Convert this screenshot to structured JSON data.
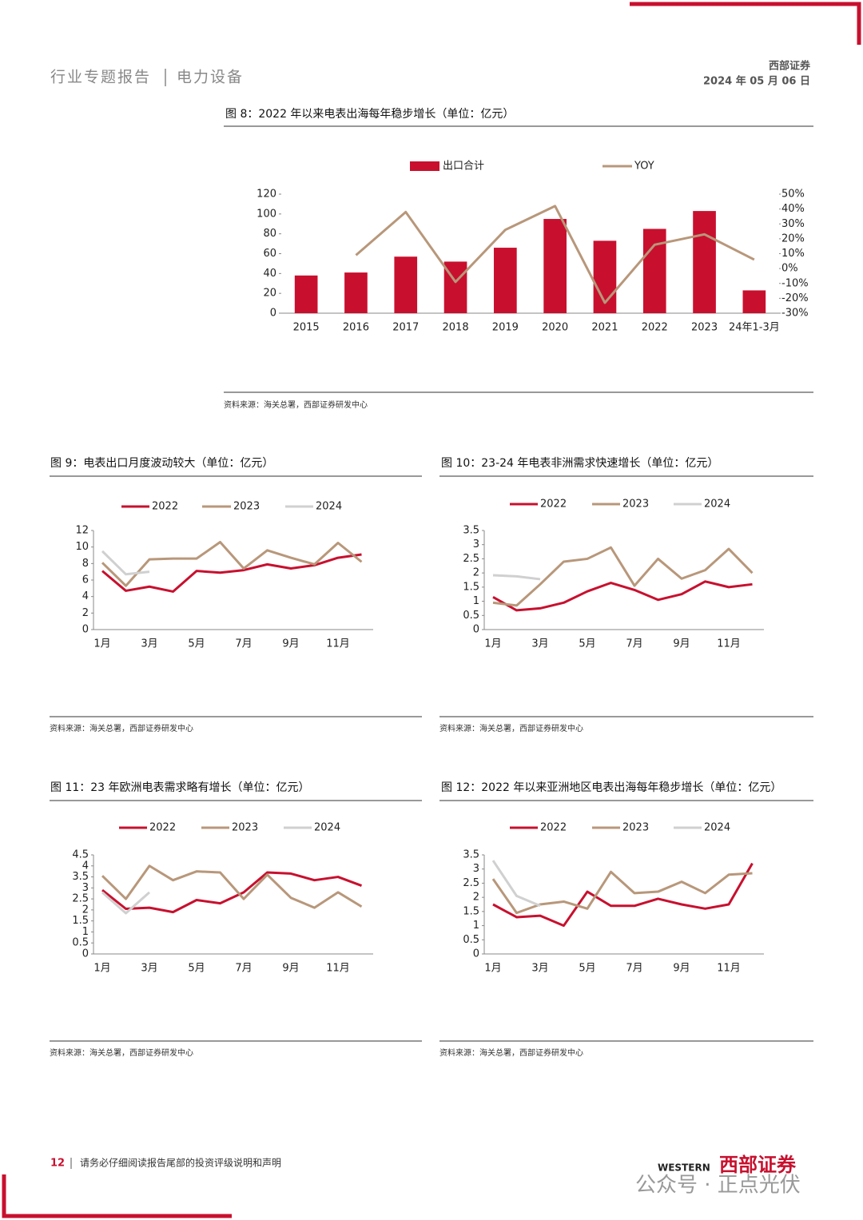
{
  "header": {
    "report_type": "行业专题报告",
    "sector": "电力设备",
    "company": "西部证券",
    "date": "2024 年 05 月 06 日"
  },
  "chart_data": [
    {
      "type": "bar",
      "title": "图 8：2022 年以来电表出海每年稳步增长（单位：亿元）",
      "source": "资料来源：海关总署，西部证券研发中心",
      "categories": [
        "2015",
        "2016",
        "2017",
        "2018",
        "2019",
        "2020",
        "2021",
        "2022",
        "2023",
        "24年1-3月"
      ],
      "series": [
        {
          "name": "出口合计",
          "type": "bar",
          "color": "#c8102e",
          "values": [
            38,
            41,
            57,
            52,
            66,
            95,
            73,
            85,
            103,
            23
          ]
        },
        {
          "name": "YOY",
          "type": "line",
          "axis": "y2",
          "color": "#b8977a",
          "values": [
            null,
            9,
            38,
            -9,
            26,
            42,
            -23,
            16,
            23,
            6
          ]
        }
      ],
      "ylim": [
        0,
        120
      ],
      "yticks": [
        0,
        20,
        40,
        60,
        80,
        100,
        120
      ],
      "y2lim": [
        -30,
        50
      ],
      "y2ticks": [
        {
          "value": -30,
          "label": "-30%"
        },
        {
          "value": -20,
          "label": "-20%"
        },
        {
          "value": -10,
          "label": "-10%"
        },
        {
          "value": 0,
          "label": "0%"
        },
        {
          "value": 10,
          "label": "10%"
        },
        {
          "value": 20,
          "label": "20%"
        },
        {
          "value": 30,
          "label": "30%"
        },
        {
          "value": 40,
          "label": "40%"
        },
        {
          "value": 50,
          "label": "50%"
        }
      ],
      "legend": "top",
      "grid": false
    },
    {
      "type": "line",
      "title": "图 9：电表出口月度波动较大（单位：亿元）",
      "source": "资料来源：海关总署，西部证券研发中心",
      "categories": [
        "1月",
        null,
        "3月",
        null,
        "5月",
        null,
        "7月",
        null,
        "9月",
        null,
        "11月",
        null
      ],
      "series": [
        {
          "name": "2022",
          "color": "#c8102e",
          "values": [
            7.1,
            4.7,
            5.2,
            4.6,
            7.1,
            6.9,
            7.2,
            7.9,
            7.4,
            7.8,
            8.7,
            9.1
          ]
        },
        {
          "name": "2023",
          "color": "#b8977a",
          "values": [
            8.1,
            5.3,
            8.5,
            8.6,
            8.6,
            10.6,
            7.4,
            9.6,
            8.7,
            7.9,
            10.5,
            8.2
          ]
        },
        {
          "name": "2024",
          "color": "#d0d0d0",
          "values": [
            9.5,
            6.7,
            7.0,
            null,
            null,
            null,
            null,
            null,
            null,
            null,
            null,
            null
          ]
        }
      ],
      "ylim": [
        0,
        12
      ],
      "yticks": [
        0,
        2,
        4,
        6,
        8,
        10,
        12
      ],
      "legend": "top",
      "grid": false
    },
    {
      "type": "line",
      "title": "图 10：23-24 年电表非洲需求快速增长（单位：亿元）",
      "source": "资料来源：海关总署，西部证券研发中心",
      "categories": [
        "1月",
        null,
        "3月",
        null,
        "5月",
        null,
        "7月",
        null,
        "9月",
        null,
        "11月",
        null
      ],
      "series": [
        {
          "name": "2022",
          "color": "#c8102e",
          "values": [
            1.15,
            0.68,
            0.75,
            0.95,
            1.35,
            1.65,
            1.4,
            1.05,
            1.25,
            1.7,
            1.5,
            1.6
          ]
        },
        {
          "name": "2023",
          "color": "#b8977a",
          "values": [
            0.95,
            0.85,
            1.6,
            2.4,
            2.5,
            2.9,
            1.55,
            2.5,
            1.8,
            2.1,
            2.85,
            2.0
          ]
        },
        {
          "name": "2024",
          "color": "#d0d0d0",
          "values": [
            1.92,
            1.88,
            1.78,
            null,
            null,
            null,
            null,
            null,
            null,
            null,
            null,
            null
          ]
        }
      ],
      "ylim": [
        0,
        3.5
      ],
      "yticks": [
        0,
        0.5,
        1,
        1.5,
        2,
        2.5,
        3,
        3.5
      ],
      "legend": "top",
      "grid": false
    },
    {
      "type": "line",
      "title": "图 11：23 年欧洲电表需求略有增长（单位：亿元）",
      "source": "资料来源：海关总署，西部证券研发中心",
      "categories": [
        "1月",
        null,
        "3月",
        null,
        "5月",
        null,
        "7月",
        null,
        "9月",
        null,
        "11月",
        null
      ],
      "series": [
        {
          "name": "2022",
          "color": "#c8102e",
          "values": [
            2.9,
            2.05,
            2.1,
            1.9,
            2.45,
            2.3,
            2.8,
            3.7,
            3.65,
            3.35,
            3.5,
            3.1
          ]
        },
        {
          "name": "2023",
          "color": "#b8977a",
          "values": [
            3.55,
            2.5,
            4.0,
            3.35,
            3.75,
            3.7,
            2.5,
            3.6,
            2.55,
            2.1,
            2.8,
            2.15
          ]
        },
        {
          "name": "2024",
          "color": "#d0d0d0",
          "values": [
            2.8,
            1.85,
            2.8,
            null,
            null,
            null,
            null,
            null,
            null,
            null,
            null,
            null
          ]
        }
      ],
      "ylim": [
        0,
        4.5
      ],
      "yticks": [
        0,
        0.5,
        1,
        1.5,
        2,
        2.5,
        3,
        3.5,
        4,
        4.5
      ],
      "legend": "top",
      "grid": false
    },
    {
      "type": "line",
      "title": "图 12：2022 年以来亚洲地区电表出海每年稳步增长（单位：亿元）",
      "source": "资料来源：海关总署，西部证券研发中心",
      "categories": [
        "1月",
        null,
        "3月",
        null,
        "5月",
        null,
        "7月",
        null,
        "9月",
        null,
        "11月",
        null
      ],
      "series": [
        {
          "name": "2022",
          "color": "#c8102e",
          "values": [
            1.75,
            1.3,
            1.35,
            1.0,
            2.2,
            1.7,
            1.7,
            1.95,
            1.75,
            1.6,
            1.75,
            3.2
          ]
        },
        {
          "name": "2023",
          "color": "#b8977a",
          "values": [
            2.65,
            1.45,
            1.75,
            1.85,
            1.6,
            2.9,
            2.15,
            2.2,
            2.55,
            2.15,
            2.8,
            2.85
          ]
        },
        {
          "name": "2024",
          "color": "#d0d0d0",
          "values": [
            3.3,
            2.05,
            1.7,
            null,
            null,
            null,
            null,
            null,
            null,
            null,
            null,
            null
          ]
        }
      ],
      "ylim": [
        0,
        3.5
      ],
      "yticks": [
        0,
        0.5,
        1,
        1.5,
        2,
        2.5,
        3,
        3.5
      ],
      "legend": "top",
      "grid": false
    }
  ],
  "footer": {
    "page": "12",
    "notice": "请务必仔细阅读报告尾部的投资评级说明和声明",
    "logo_en": "WESTERN",
    "logo_cn": "西部证券",
    "watermark": "公众号 · 正点光伏"
  }
}
